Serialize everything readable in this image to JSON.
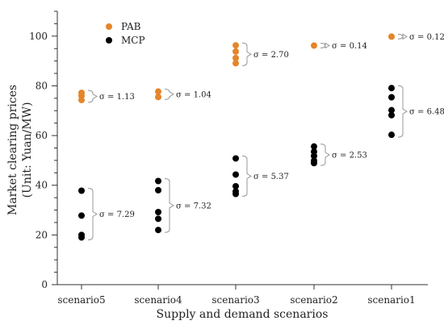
{
  "chart_data": {
    "type": "scatter",
    "title": "",
    "xlabel": "Supply and demand scenarios",
    "ylabel": "Market clearing prices",
    "ylabel_unit": "(Unit: Yuan/MW)",
    "categories": [
      "scenario5",
      "scenario4",
      "scenario3",
      "scenario2",
      "scenario1"
    ],
    "ylim": [
      0,
      110
    ],
    "yticks": [
      0,
      20,
      40,
      60,
      80,
      100
    ],
    "grid": false,
    "legend_position": "top-left",
    "series": [
      {
        "name": "PAB",
        "color": "#e5852a",
        "points": [
          {
            "category": "scenario5",
            "values": [
              77.2,
              76.0,
              74.3
            ]
          },
          {
            "category": "scenario4",
            "values": [
              77.7,
              75.5
            ]
          },
          {
            "category": "scenario3",
            "values": [
              96.3,
              93.8,
              91.2,
              89.1
            ]
          },
          {
            "category": "scenario2",
            "values": [
              96.2
            ]
          },
          {
            "category": "scenario1",
            "values": [
              99.8
            ]
          }
        ],
        "sigma_labels": [
          {
            "category": "scenario5",
            "text": "σ = 1.13"
          },
          {
            "category": "scenario4",
            "text": "σ = 1.04"
          },
          {
            "category": "scenario3",
            "text": "σ = 2.70"
          },
          {
            "category": "scenario2",
            "text": "σ = 0.14"
          },
          {
            "category": "scenario1",
            "text": "σ = 0.12"
          }
        ]
      },
      {
        "name": "MCP",
        "color": "#000000",
        "points": [
          {
            "category": "scenario5",
            "values": [
              37.8,
              27.8,
              20.0,
              19.0
            ]
          },
          {
            "category": "scenario4",
            "values": [
              41.7,
              38.0,
              29.2,
              26.5,
              22.0
            ]
          },
          {
            "category": "scenario3",
            "values": [
              50.8,
              44.3,
              39.6,
              37.5,
              36.5
            ]
          },
          {
            "category": "scenario2",
            "values": [
              55.6,
              53.5,
              51.8,
              49.9,
              48.9
            ]
          },
          {
            "category": "scenario1",
            "values": [
              79.1,
              75.4,
              70.2,
              68.2,
              60.3
            ]
          }
        ],
        "sigma_labels": [
          {
            "category": "scenario5",
            "text": "σ = 7.29"
          },
          {
            "category": "scenario4",
            "text": "σ = 7.32"
          },
          {
            "category": "scenario3",
            "text": "σ = 5.37"
          },
          {
            "category": "scenario2",
            "text": "σ = 2.53"
          },
          {
            "category": "scenario1",
            "text": "σ = 6.48"
          }
        ]
      }
    ]
  }
}
